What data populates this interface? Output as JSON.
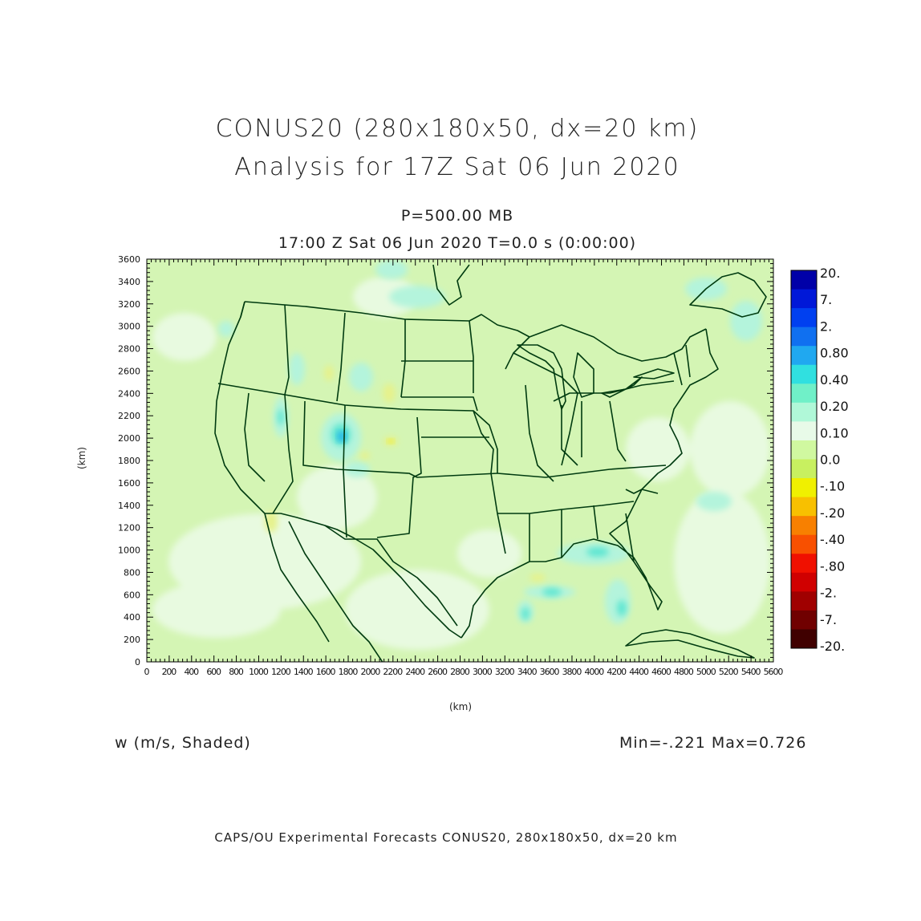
{
  "titles": {
    "line1": "CONUS20 (280x180x50, dx=20 km)",
    "line2": "Analysis for 17Z Sat 06 Jun 2020",
    "level": "P=500.00 MB",
    "time": "17:00 Z Sat 06 Jun 2020    T=0.0 s (0:00:00)"
  },
  "field_label": "w (m/s, Shaded)",
  "min_max": "Min=-.221 Max=0.726",
  "footer": "CAPS/OU Experimental Forecasts  CONUS20, 280x180x50, dx=20 km",
  "axes": {
    "x_unit": "(km)",
    "y_unit": "(km)",
    "x_ticks": [
      0,
      200,
      400,
      600,
      800,
      1000,
      1200,
      1400,
      1600,
      1800,
      2000,
      2200,
      2400,
      2600,
      2800,
      3000,
      3200,
      3400,
      3600,
      3800,
      4000,
      4200,
      4400,
      4600,
      4800,
      5000,
      5200,
      5400,
      5600
    ],
    "y_ticks": [
      0,
      200,
      400,
      600,
      800,
      1000,
      1200,
      1400,
      1600,
      1800,
      2000,
      2200,
      2400,
      2600,
      2800,
      3000,
      3200,
      3400,
      3600
    ],
    "x_range": [
      0,
      5600
    ],
    "y_range": [
      0,
      3600
    ]
  },
  "colorbar": {
    "labels": [
      "20.",
      "7.",
      "2.",
      "0.80",
      "0.40",
      "0.20",
      "0.10",
      "0.0",
      "-.10",
      "-.20",
      "-.40",
      "-.80",
      "-2.",
      "-7.",
      "-20."
    ],
    "colors": [
      "#0000a8",
      "#0018d8",
      "#0040f0",
      "#1070f0",
      "#20a8f0",
      "#30e0e0",
      "#70f0c8",
      "#b0f8d8",
      "#e8fae8",
      "#d0f8a0",
      "#c8f060",
      "#f0f000",
      "#f8c000",
      "#f88000",
      "#f85000",
      "#f01000",
      "#d00000",
      "#a00000",
      "#700000",
      "#400000"
    ]
  },
  "colors": {
    "background_field": "#d4f5b4",
    "border_lines": "#003b10",
    "positive_shade": "#a0f0d8",
    "strong_positive": "#20c8e0",
    "negative_shade": "#e4f090"
  }
}
